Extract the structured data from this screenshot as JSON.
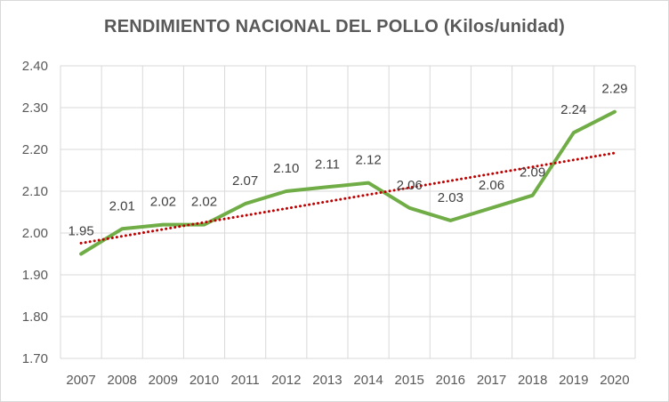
{
  "chart_data": {
    "type": "line",
    "title": "RENDIMIENTO NACIONAL DEL POLLO (Kilos/unidad)",
    "xlabel": "",
    "ylabel": "",
    "categories": [
      "2007",
      "2008",
      "2009",
      "2010",
      "2011",
      "2012",
      "2013",
      "2014",
      "2015",
      "2016",
      "2017",
      "2018",
      "2019",
      "2020"
    ],
    "series": [
      {
        "values": [
          1.95,
          2.01,
          2.02,
          2.02,
          2.07,
          2.1,
          2.11,
          2.12,
          2.06,
          2.03,
          2.06,
          2.09,
          2.24,
          2.29
        ],
        "labels": [
          "1.95",
          "2.01",
          "2.02",
          "2.02",
          "2.07",
          "2.10",
          "2.11",
          "2.12",
          "2.06",
          "2.03",
          "2.06",
          "2.09",
          "2.24",
          "2.29"
        ],
        "color": "#70ad47"
      }
    ],
    "trendline": {
      "type": "linear",
      "color": "#c00000",
      "style": "dotted"
    },
    "ylim": [
      1.7,
      2.4
    ],
    "yticks": [
      "1.70",
      "1.80",
      "1.90",
      "2.00",
      "2.10",
      "2.20",
      "2.30",
      "2.40"
    ],
    "grid": true,
    "gridColor": "#d9d9d9"
  }
}
